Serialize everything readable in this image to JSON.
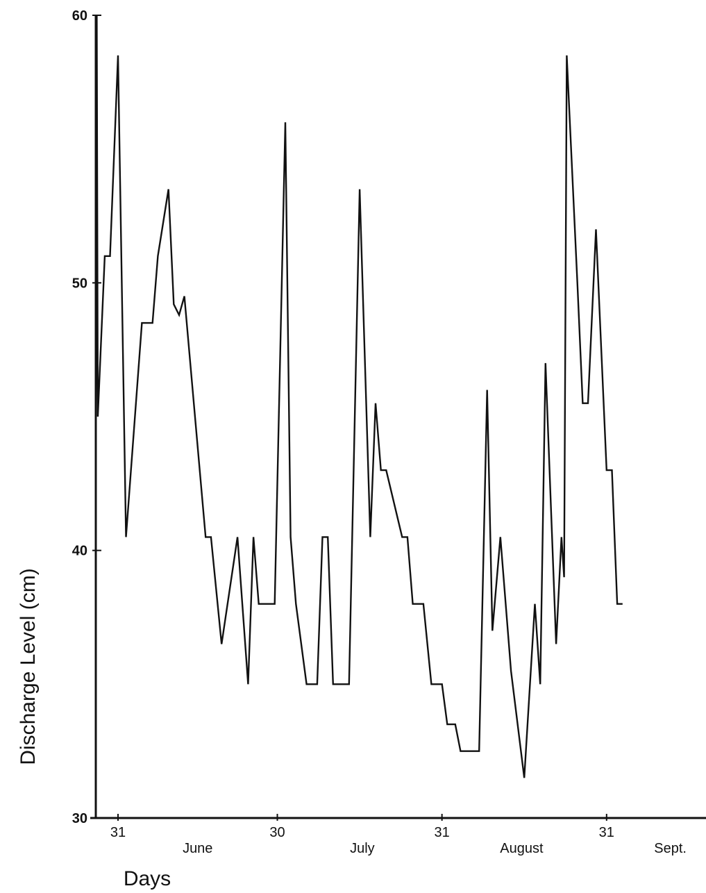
{
  "chart_data": {
    "type": "line",
    "title": "",
    "ylabel": "Discharge Level (cm)",
    "xlabel": "Days",
    "ylim": [
      30,
      60
    ],
    "yticks": [
      30,
      40,
      50,
      60
    ],
    "grid": false,
    "legend": "none",
    "x_tick_labels": [
      {
        "day": 0,
        "label": "31"
      },
      {
        "day": 30,
        "label": "30"
      },
      {
        "day": 61,
        "label": "31"
      },
      {
        "day": 92,
        "label": "31"
      }
    ],
    "month_labels": [
      {
        "day": 15,
        "label": "June"
      },
      {
        "day": 46,
        "label": "July"
      },
      {
        "day": 76,
        "label": "August"
      },
      {
        "day": 104,
        "label": "Sept."
      }
    ],
    "series": [
      {
        "color": "#111111",
        "points": [
          [
            -4.2,
            40.0
          ],
          [
            -4.0,
            60.0
          ],
          [
            -3.8,
            45.0
          ],
          [
            -2.5,
            51.0
          ],
          [
            -1.5,
            51.0
          ],
          [
            0.0,
            58.5
          ],
          [
            1.5,
            40.5
          ],
          [
            4.5,
            48.5
          ],
          [
            6.5,
            48.5
          ],
          [
            7.5,
            51.0
          ],
          [
            9.5,
            53.5
          ],
          [
            10.5,
            49.2
          ],
          [
            11.5,
            48.8
          ],
          [
            12.5,
            49.5
          ],
          [
            16.5,
            40.5
          ],
          [
            17.5,
            40.5
          ],
          [
            19.5,
            36.5
          ],
          [
            22.5,
            40.5
          ],
          [
            24.5,
            35.0
          ],
          [
            25.5,
            40.5
          ],
          [
            26.5,
            38.0
          ],
          [
            29.5,
            38.0
          ],
          [
            31.5,
            56.0
          ],
          [
            32.5,
            40.5
          ],
          [
            33.5,
            38.0
          ],
          [
            35.5,
            35.0
          ],
          [
            37.5,
            35.0
          ],
          [
            38.5,
            40.5
          ],
          [
            39.5,
            40.5
          ],
          [
            40.5,
            35.0
          ],
          [
            43.5,
            35.0
          ],
          [
            45.5,
            53.5
          ],
          [
            47.5,
            40.5
          ],
          [
            48.5,
            45.5
          ],
          [
            49.5,
            43.0
          ],
          [
            50.5,
            43.0
          ],
          [
            53.5,
            40.5
          ],
          [
            54.5,
            40.5
          ],
          [
            55.5,
            38.0
          ],
          [
            57.5,
            38.0
          ],
          [
            59.0,
            35.0
          ],
          [
            61.0,
            35.0
          ],
          [
            62.0,
            33.5
          ],
          [
            63.5,
            33.5
          ],
          [
            64.5,
            32.5
          ],
          [
            68.0,
            32.5
          ],
          [
            69.5,
            46.0
          ],
          [
            70.5,
            37.0
          ],
          [
            72.0,
            40.5
          ],
          [
            74.0,
            35.5
          ],
          [
            76.5,
            31.5
          ],
          [
            78.5,
            38.0
          ],
          [
            79.5,
            35.0
          ],
          [
            80.5,
            47.0
          ],
          [
            82.5,
            36.5
          ],
          [
            83.5,
            40.5
          ],
          [
            84.0,
            39.0
          ],
          [
            84.5,
            58.5
          ],
          [
            86.5,
            50.0
          ],
          [
            87.5,
            45.5
          ],
          [
            88.5,
            45.5
          ],
          [
            90.0,
            52.0
          ],
          [
            92.0,
            43.0
          ],
          [
            93.0,
            43.0
          ],
          [
            94.0,
            38.0
          ],
          [
            95.0,
            38.0
          ]
        ]
      }
    ]
  }
}
